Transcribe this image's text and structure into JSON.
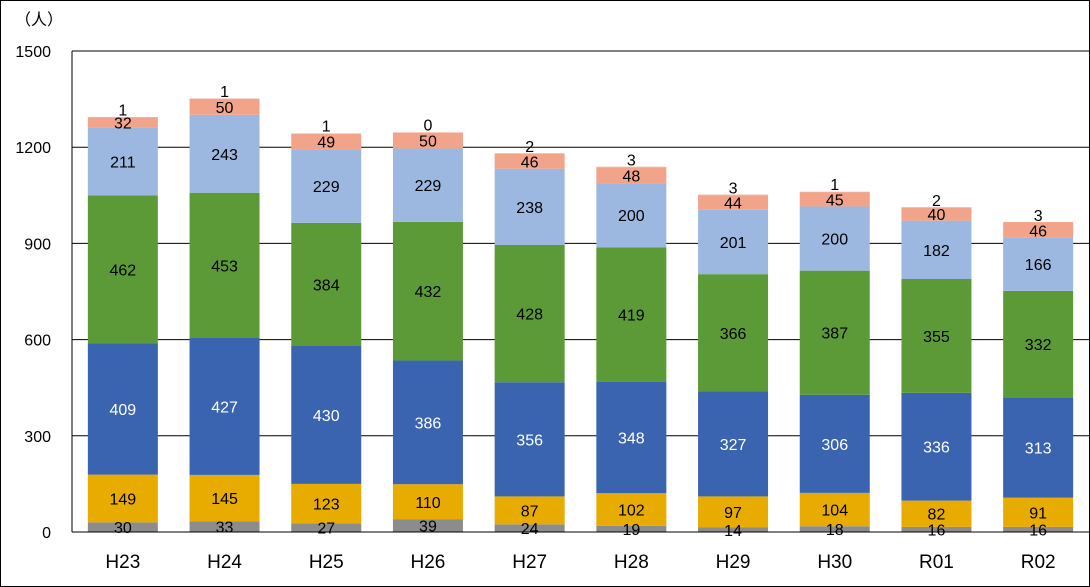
{
  "chart_data": {
    "type": "bar",
    "stacked": true,
    "title": "",
    "xlabel": "",
    "ylabel": "（人）",
    "ylim": [
      0,
      1500
    ],
    "yticks": [
      0,
      300,
      600,
      900,
      1200,
      1500
    ],
    "ytick_labels": [
      "0",
      "300",
      "600",
      "900",
      "1200",
      "1500"
    ],
    "grid": true,
    "legend": "none",
    "categories": [
      "H23",
      "H24",
      "H25",
      "H26",
      "H27",
      "H28",
      "H29",
      "H30",
      "R01",
      "R02"
    ],
    "series": [
      {
        "color": "#8c8c8c",
        "label_color": "#000000",
        "values": [
          30,
          33,
          27,
          39,
          24,
          19,
          14,
          18,
          16,
          16
        ]
      },
      {
        "color": "#e8ab00",
        "label_color": "#000000",
        "values": [
          149,
          145,
          123,
          110,
          87,
          102,
          97,
          104,
          82,
          91
        ]
      },
      {
        "color": "#3a63b0",
        "label_color": "#ffffff",
        "values": [
          409,
          427,
          430,
          386,
          356,
          348,
          327,
          306,
          336,
          313
        ]
      },
      {
        "color": "#5c9a38",
        "label_color": "#000000",
        "values": [
          462,
          453,
          384,
          432,
          428,
          419,
          366,
          387,
          355,
          332
        ]
      },
      {
        "color": "#9db8e0",
        "label_color": "#000000",
        "values": [
          211,
          243,
          229,
          229,
          238,
          200,
          201,
          200,
          182,
          166
        ]
      },
      {
        "color": "#f2a48a",
        "label_color": "#000000",
        "values": [
          32,
          50,
          49,
          50,
          46,
          48,
          44,
          45,
          40,
          46
        ]
      },
      {
        "color": "#f2a48a",
        "label_color": "#000000",
        "values": [
          1,
          1,
          1,
          0,
          2,
          3,
          3,
          1,
          2,
          3
        ]
      }
    ]
  }
}
